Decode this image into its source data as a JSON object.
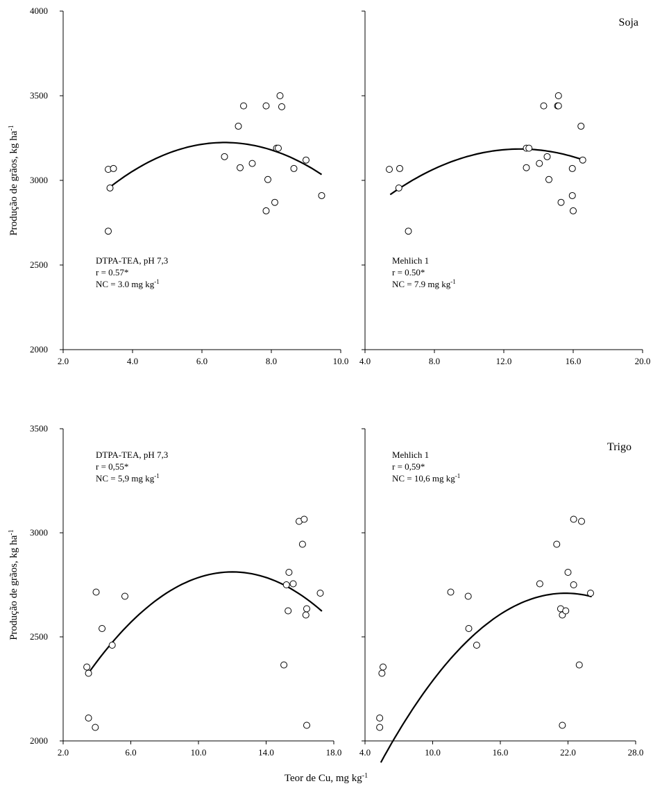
{
  "figure": {
    "shared_xlabel": "Teor de Cu, mg kg",
    "shared_xlabel_sup": "-1",
    "colors": {
      "axis": "#000000",
      "marker_stroke": "#000000",
      "curve": "#000000"
    }
  },
  "chart_data": [
    {
      "type": "scatter",
      "row": "top",
      "col": "left",
      "ylabel": "Produção de grãos, kg ha",
      "ylabel_sup": "-1",
      "xlim": [
        2,
        10
      ],
      "ylim": [
        2000,
        4000
      ],
      "xticks": [
        "2.0",
        "4.0",
        "6.0",
        "8.0",
        "10.0"
      ],
      "yticks": [
        "2000",
        "2500",
        "3000",
        "3500",
        "4000"
      ],
      "annotation": [
        "DTPA-TEA, pH 7,3",
        "r = 0.57*",
        "NC = 3.0 mg kg|-1"
      ],
      "points": [
        [
          3.3,
          3065
        ],
        [
          3.45,
          3070
        ],
        [
          3.35,
          2955
        ],
        [
          3.3,
          2700
        ],
        [
          6.65,
          3140
        ],
        [
          7.05,
          3320
        ],
        [
          7.2,
          3440
        ],
        [
          7.1,
          3075
        ],
        [
          7.45,
          3100
        ],
        [
          7.85,
          3440
        ],
        [
          8.25,
          3500
        ],
        [
          8.3,
          3435
        ],
        [
          8.15,
          3190
        ],
        [
          8.2,
          3190
        ],
        [
          7.9,
          3005
        ],
        [
          7.85,
          2820
        ],
        [
          8.1,
          2870
        ],
        [
          8.65,
          3070
        ],
        [
          9.0,
          3120
        ],
        [
          9.45,
          2910
        ]
      ],
      "fit": {
        "a": -24.15,
        "b": 321.3,
        "c": 2155,
        "x_range": [
          3.35,
          9.45
        ]
      }
    },
    {
      "type": "scatter",
      "row": "top",
      "col": "right",
      "title": "Soja",
      "xlim": [
        4,
        20
      ],
      "ylim": [
        2000,
        4000
      ],
      "xticks": [
        "4.0",
        "8.0",
        "12.0",
        "16.0",
        "20.0"
      ],
      "annotation": [
        "Mehlich 1",
        "r = 0.50*",
        "NC = 7.9 mg kg|-1"
      ],
      "points": [
        [
          5.4,
          3065
        ],
        [
          6.0,
          3070
        ],
        [
          5.95,
          2955
        ],
        [
          6.5,
          2700
        ],
        [
          13.3,
          3190
        ],
        [
          13.45,
          3190
        ],
        [
          13.3,
          3075
        ],
        [
          14.05,
          3100
        ],
        [
          14.3,
          3440
        ],
        [
          14.5,
          3140
        ],
        [
          14.6,
          3005
        ],
        [
          15.1,
          3440
        ],
        [
          15.15,
          3440
        ],
        [
          15.15,
          3500
        ],
        [
          15.3,
          2870
        ],
        [
          15.95,
          3070
        ],
        [
          15.95,
          2910
        ],
        [
          16.0,
          2820
        ],
        [
          16.45,
          3320
        ],
        [
          16.55,
          3120
        ]
      ],
      "fit": {
        "a": -4.82,
        "b": 124.6,
        "c": 2380,
        "x_range": [
          5.45,
          16.55
        ]
      }
    },
    {
      "type": "scatter",
      "row": "bottom",
      "col": "left",
      "ylabel": "Produção de grãos, kg ha",
      "ylabel_sup": "-1",
      "xlim": [
        2,
        18
      ],
      "ylim": [
        2000,
        3500
      ],
      "xticks": [
        "2.0",
        "6.0",
        "10.0",
        "14.0",
        "18.0"
      ],
      "yticks": [
        "2000",
        "2500",
        "3000",
        "3500"
      ],
      "annotation": [
        "DTPA-TEA, pH 7,3",
        "r = 0,55*",
        "NC = 5,9 mg kg|-1"
      ],
      "points": [
        [
          3.4,
          2355
        ],
        [
          3.5,
          2325
        ],
        [
          3.5,
          2110
        ],
        [
          3.9,
          2065
        ],
        [
          3.95,
          2715
        ],
        [
          4.3,
          2540
        ],
        [
          4.9,
          2460
        ],
        [
          5.65,
          2695
        ],
        [
          15.05,
          2365
        ],
        [
          15.2,
          2750
        ],
        [
          15.3,
          2625
        ],
        [
          15.35,
          2810
        ],
        [
          15.6,
          2755
        ],
        [
          15.95,
          3055
        ],
        [
          16.15,
          2945
        ],
        [
          16.25,
          3065
        ],
        [
          16.35,
          2605
        ],
        [
          16.4,
          2635
        ],
        [
          16.4,
          2075
        ],
        [
          17.2,
          2710
        ]
      ],
      "fit": {
        "a": -6.72,
        "b": 161.3,
        "c": 1844,
        "x_range": [
          3.5,
          17.3
        ]
      }
    },
    {
      "type": "scatter",
      "row": "bottom",
      "col": "right",
      "title": "Trigo",
      "xlim": [
        4,
        28
      ],
      "ylim": [
        2000,
        3500
      ],
      "xticks": [
        "4.0",
        "10.0",
        "16.0",
        "22.0",
        "28.0"
      ],
      "annotation": [
        "Mehlich 1",
        "r = 0,59*",
        "NC = 10,6 mg kg|-1"
      ],
      "points": [
        [
          5.3,
          2110
        ],
        [
          5.3,
          2065
        ],
        [
          5.5,
          2325
        ],
        [
          5.6,
          2355
        ],
        [
          11.6,
          2715
        ],
        [
          13.15,
          2695
        ],
        [
          13.2,
          2540
        ],
        [
          13.9,
          2460
        ],
        [
          19.5,
          2755
        ],
        [
          21.0,
          2945
        ],
        [
          21.35,
          2635
        ],
        [
          21.5,
          2605
        ],
        [
          21.5,
          2075
        ],
        [
          21.8,
          2625
        ],
        [
          22.0,
          2810
        ],
        [
          22.5,
          2750
        ],
        [
          22.5,
          3065
        ],
        [
          23.0,
          2365
        ],
        [
          23.2,
          3055
        ],
        [
          24.0,
          2710
        ]
      ],
      "fit": {
        "a": -3.03,
        "b": 132.0,
        "c": 1272,
        "x_range": [
          5.4,
          24.1
        ]
      }
    }
  ]
}
